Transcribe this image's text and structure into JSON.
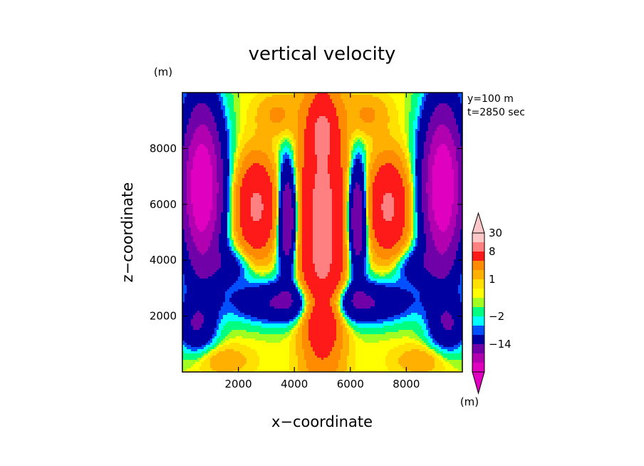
{
  "chart_data": {
    "type": "heatmap",
    "title": "vertical velocity",
    "xlabel": "x−coordinate",
    "ylabel": "z−coordinate",
    "y_units": "(m)",
    "annotation": [
      "y=100 m",
      "t=2850 sec"
    ],
    "xlim": [
      0,
      10000
    ],
    "ylim": [
      0,
      10000
    ],
    "x_ticks": [
      "2000",
      "4000",
      "6000",
      "8000"
    ],
    "x_tick_values": [
      2000,
      4000,
      6000,
      8000
    ],
    "y_ticks": [
      "2000",
      "4000",
      "6000",
      "8000"
    ],
    "y_tick_values": [
      2000,
      4000,
      6000,
      8000
    ],
    "colorbar": {
      "units": "(m)",
      "labels": [
        "30",
        "8",
        "1",
        "−2",
        "−14"
      ],
      "label_values": [
        30,
        8,
        1,
        -2,
        -14
      ],
      "bands": [
        {
          "lo": 30,
          "color": "#FFC8C8"
        },
        {
          "lo": 20,
          "color": "#FF8080"
        },
        {
          "lo": 8,
          "color": "#FF1A1A"
        },
        {
          "lo": 4,
          "color": "#FF8C00"
        },
        {
          "lo": 2,
          "color": "#FFB000"
        },
        {
          "lo": 1,
          "color": "#FFE000"
        },
        {
          "lo": 0.5,
          "color": "#FFFF00"
        },
        {
          "lo": 0,
          "color": "#A0FF20"
        },
        {
          "lo": -1,
          "color": "#00FF80"
        },
        {
          "lo": -2,
          "color": "#00FFFF"
        },
        {
          "lo": -3,
          "color": "#0050FF"
        },
        {
          "lo": -8,
          "color": "#0000A0"
        },
        {
          "lo": -14,
          "color": "#7000A8"
        },
        {
          "lo": -20,
          "color": "#B000B0"
        },
        {
          "lo": -999,
          "color": "#E000C0"
        }
      ]
    }
  }
}
